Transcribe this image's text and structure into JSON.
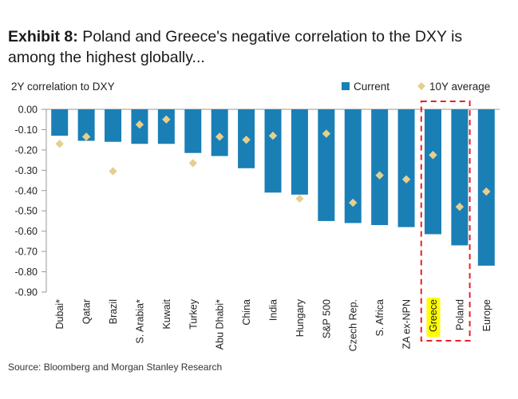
{
  "title": {
    "prefix": "Exhibit 8:",
    "text": "Poland and Greece's negative correlation to the DXY is among the highest globally..."
  },
  "source": "Source: Bloomberg and Morgan Stanley Research",
  "colors": {
    "current": "#1a7fb5",
    "average": "#e6cf8e",
    "highlight_box": "#e8202a",
    "greece_label_bg": "#ffff00"
  },
  "chart_data": {
    "type": "bar",
    "ylabel": "2Y correlation to DXY",
    "ylim": [
      -0.9,
      0.0
    ],
    "yticks": [
      0.0,
      -0.1,
      -0.2,
      -0.3,
      -0.4,
      -0.5,
      -0.6,
      -0.7,
      -0.8,
      -0.9
    ],
    "ytick_labels": [
      "0.00",
      "-0.10",
      "-0.20",
      "-0.30",
      "-0.40",
      "-0.50",
      "-0.60",
      "-0.70",
      "-0.80",
      "-0.90"
    ],
    "legend_position": "top-right",
    "categories": [
      "Dubai*",
      "Qatar",
      "Brazil",
      "S. Arabia*",
      "Kuwait",
      "Turkey",
      "Abu Dhabi*",
      "China",
      "India",
      "Hungary",
      "S&P 500",
      "Czech Rep.",
      "S. Africa",
      "ZA ex-NPN",
      "Greece",
      "Poland",
      "Europe"
    ],
    "highlighted": [
      "Greece",
      "Poland"
    ],
    "series": [
      {
        "name": "Current",
        "kind": "bar",
        "values": [
          -0.13,
          -0.155,
          -0.16,
          -0.17,
          -0.17,
          -0.215,
          -0.23,
          -0.29,
          -0.41,
          -0.42,
          -0.55,
          -0.56,
          -0.57,
          -0.58,
          -0.615,
          -0.67,
          -0.77
        ]
      },
      {
        "name": "10Y average",
        "kind": "marker",
        "values": [
          -0.17,
          -0.135,
          -0.305,
          -0.075,
          -0.05,
          -0.265,
          -0.135,
          -0.15,
          -0.13,
          -0.44,
          -0.12,
          -0.46,
          -0.325,
          -0.345,
          -0.225,
          -0.48,
          -0.405
        ]
      }
    ]
  }
}
